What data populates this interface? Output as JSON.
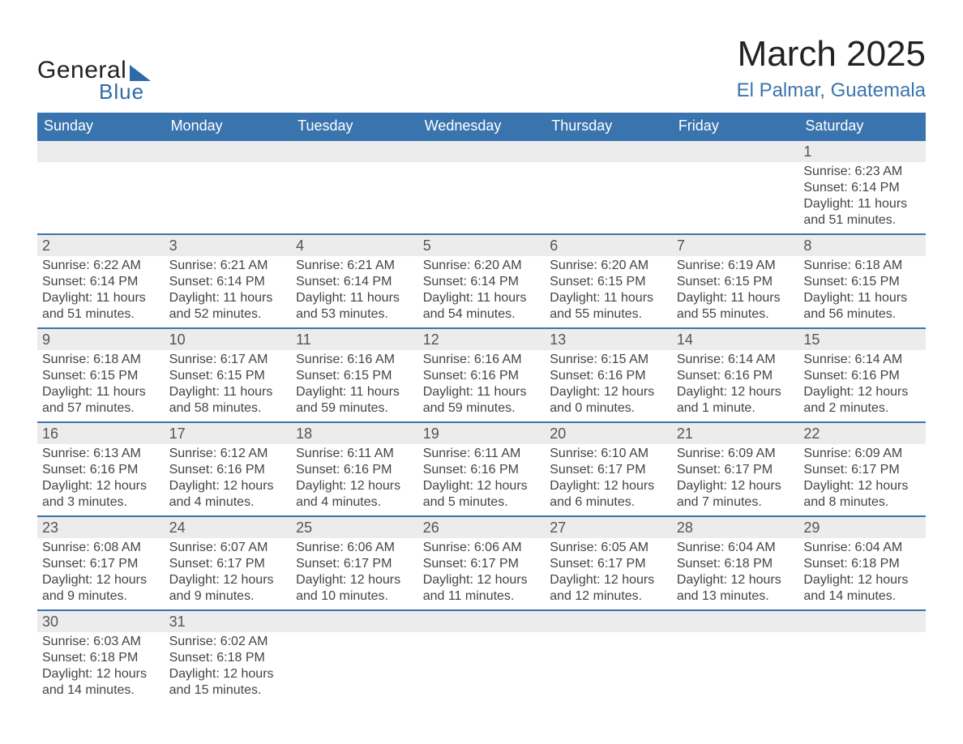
{
  "logo": {
    "text1": "General",
    "text2": "Blue"
  },
  "title": {
    "month": "March 2025",
    "location": "El Palmar, Guatemala"
  },
  "colors": {
    "header_bg": "#3a74ae",
    "header_text": "#ffffff",
    "daynum_bg": "#ececec",
    "border": "#3a74ae",
    "logo_accent": "#2f6aa8",
    "body_text": "#444444"
  },
  "fonts": {
    "month_title_size": 44,
    "location_size": 24,
    "header_size": 18,
    "daynum_size": 18,
    "body_size": 16
  },
  "weekdays": [
    "Sunday",
    "Monday",
    "Tuesday",
    "Wednesday",
    "Thursday",
    "Friday",
    "Saturday"
  ],
  "weeks": [
    [
      {
        "day": null
      },
      {
        "day": null
      },
      {
        "day": null
      },
      {
        "day": null
      },
      {
        "day": null
      },
      {
        "day": null
      },
      {
        "day": "1",
        "sunrise": "Sunrise: 6:23 AM",
        "sunset": "Sunset: 6:14 PM",
        "daylight1": "Daylight: 11 hours",
        "daylight2": "and 51 minutes."
      }
    ],
    [
      {
        "day": "2",
        "sunrise": "Sunrise: 6:22 AM",
        "sunset": "Sunset: 6:14 PM",
        "daylight1": "Daylight: 11 hours",
        "daylight2": "and 51 minutes."
      },
      {
        "day": "3",
        "sunrise": "Sunrise: 6:21 AM",
        "sunset": "Sunset: 6:14 PM",
        "daylight1": "Daylight: 11 hours",
        "daylight2": "and 52 minutes."
      },
      {
        "day": "4",
        "sunrise": "Sunrise: 6:21 AM",
        "sunset": "Sunset: 6:14 PM",
        "daylight1": "Daylight: 11 hours",
        "daylight2": "and 53 minutes."
      },
      {
        "day": "5",
        "sunrise": "Sunrise: 6:20 AM",
        "sunset": "Sunset: 6:14 PM",
        "daylight1": "Daylight: 11 hours",
        "daylight2": "and 54 minutes."
      },
      {
        "day": "6",
        "sunrise": "Sunrise: 6:20 AM",
        "sunset": "Sunset: 6:15 PM",
        "daylight1": "Daylight: 11 hours",
        "daylight2": "and 55 minutes."
      },
      {
        "day": "7",
        "sunrise": "Sunrise: 6:19 AM",
        "sunset": "Sunset: 6:15 PM",
        "daylight1": "Daylight: 11 hours",
        "daylight2": "and 55 minutes."
      },
      {
        "day": "8",
        "sunrise": "Sunrise: 6:18 AM",
        "sunset": "Sunset: 6:15 PM",
        "daylight1": "Daylight: 11 hours",
        "daylight2": "and 56 minutes."
      }
    ],
    [
      {
        "day": "9",
        "sunrise": "Sunrise: 6:18 AM",
        "sunset": "Sunset: 6:15 PM",
        "daylight1": "Daylight: 11 hours",
        "daylight2": "and 57 minutes."
      },
      {
        "day": "10",
        "sunrise": "Sunrise: 6:17 AM",
        "sunset": "Sunset: 6:15 PM",
        "daylight1": "Daylight: 11 hours",
        "daylight2": "and 58 minutes."
      },
      {
        "day": "11",
        "sunrise": "Sunrise: 6:16 AM",
        "sunset": "Sunset: 6:15 PM",
        "daylight1": "Daylight: 11 hours",
        "daylight2": "and 59 minutes."
      },
      {
        "day": "12",
        "sunrise": "Sunrise: 6:16 AM",
        "sunset": "Sunset: 6:16 PM",
        "daylight1": "Daylight: 11 hours",
        "daylight2": "and 59 minutes."
      },
      {
        "day": "13",
        "sunrise": "Sunrise: 6:15 AM",
        "sunset": "Sunset: 6:16 PM",
        "daylight1": "Daylight: 12 hours",
        "daylight2": "and 0 minutes."
      },
      {
        "day": "14",
        "sunrise": "Sunrise: 6:14 AM",
        "sunset": "Sunset: 6:16 PM",
        "daylight1": "Daylight: 12 hours",
        "daylight2": "and 1 minute."
      },
      {
        "day": "15",
        "sunrise": "Sunrise: 6:14 AM",
        "sunset": "Sunset: 6:16 PM",
        "daylight1": "Daylight: 12 hours",
        "daylight2": "and 2 minutes."
      }
    ],
    [
      {
        "day": "16",
        "sunrise": "Sunrise: 6:13 AM",
        "sunset": "Sunset: 6:16 PM",
        "daylight1": "Daylight: 12 hours",
        "daylight2": "and 3 minutes."
      },
      {
        "day": "17",
        "sunrise": "Sunrise: 6:12 AM",
        "sunset": "Sunset: 6:16 PM",
        "daylight1": "Daylight: 12 hours",
        "daylight2": "and 4 minutes."
      },
      {
        "day": "18",
        "sunrise": "Sunrise: 6:11 AM",
        "sunset": "Sunset: 6:16 PM",
        "daylight1": "Daylight: 12 hours",
        "daylight2": "and 4 minutes."
      },
      {
        "day": "19",
        "sunrise": "Sunrise: 6:11 AM",
        "sunset": "Sunset: 6:16 PM",
        "daylight1": "Daylight: 12 hours",
        "daylight2": "and 5 minutes."
      },
      {
        "day": "20",
        "sunrise": "Sunrise: 6:10 AM",
        "sunset": "Sunset: 6:17 PM",
        "daylight1": "Daylight: 12 hours",
        "daylight2": "and 6 minutes."
      },
      {
        "day": "21",
        "sunrise": "Sunrise: 6:09 AM",
        "sunset": "Sunset: 6:17 PM",
        "daylight1": "Daylight: 12 hours",
        "daylight2": "and 7 minutes."
      },
      {
        "day": "22",
        "sunrise": "Sunrise: 6:09 AM",
        "sunset": "Sunset: 6:17 PM",
        "daylight1": "Daylight: 12 hours",
        "daylight2": "and 8 minutes."
      }
    ],
    [
      {
        "day": "23",
        "sunrise": "Sunrise: 6:08 AM",
        "sunset": "Sunset: 6:17 PM",
        "daylight1": "Daylight: 12 hours",
        "daylight2": "and 9 minutes."
      },
      {
        "day": "24",
        "sunrise": "Sunrise: 6:07 AM",
        "sunset": "Sunset: 6:17 PM",
        "daylight1": "Daylight: 12 hours",
        "daylight2": "and 9 minutes."
      },
      {
        "day": "25",
        "sunrise": "Sunrise: 6:06 AM",
        "sunset": "Sunset: 6:17 PM",
        "daylight1": "Daylight: 12 hours",
        "daylight2": "and 10 minutes."
      },
      {
        "day": "26",
        "sunrise": "Sunrise: 6:06 AM",
        "sunset": "Sunset: 6:17 PM",
        "daylight1": "Daylight: 12 hours",
        "daylight2": "and 11 minutes."
      },
      {
        "day": "27",
        "sunrise": "Sunrise: 6:05 AM",
        "sunset": "Sunset: 6:17 PM",
        "daylight1": "Daylight: 12 hours",
        "daylight2": "and 12 minutes."
      },
      {
        "day": "28",
        "sunrise": "Sunrise: 6:04 AM",
        "sunset": "Sunset: 6:18 PM",
        "daylight1": "Daylight: 12 hours",
        "daylight2": "and 13 minutes."
      },
      {
        "day": "29",
        "sunrise": "Sunrise: 6:04 AM",
        "sunset": "Sunset: 6:18 PM",
        "daylight1": "Daylight: 12 hours",
        "daylight2": "and 14 minutes."
      }
    ],
    [
      {
        "day": "30",
        "sunrise": "Sunrise: 6:03 AM",
        "sunset": "Sunset: 6:18 PM",
        "daylight1": "Daylight: 12 hours",
        "daylight2": "and 14 minutes."
      },
      {
        "day": "31",
        "sunrise": "Sunrise: 6:02 AM",
        "sunset": "Sunset: 6:18 PM",
        "daylight1": "Daylight: 12 hours",
        "daylight2": "and 15 minutes."
      },
      {
        "day": null
      },
      {
        "day": null
      },
      {
        "day": null
      },
      {
        "day": null
      },
      {
        "day": null
      }
    ]
  ]
}
